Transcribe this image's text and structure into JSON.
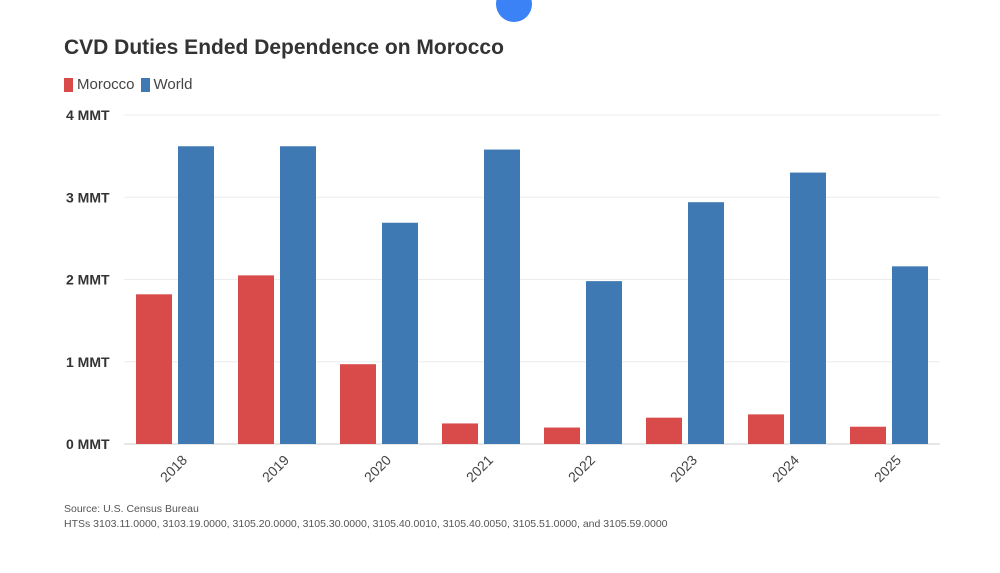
{
  "chart_data": {
    "type": "bar",
    "title": "CVD Duties Ended Dependence on Morocco",
    "categories": [
      "2018",
      "2019",
      "2020",
      "2021",
      "2022",
      "2023",
      "2024",
      "2025"
    ],
    "series": [
      {
        "name": "Morocco",
        "color": "#d94a4a",
        "values": [
          1.82,
          2.05,
          0.97,
          0.25,
          0.2,
          0.32,
          0.36,
          0.21
        ]
      },
      {
        "name": "World",
        "color": "#3f79b3",
        "values": [
          3.62,
          3.62,
          2.69,
          3.58,
          1.98,
          2.94,
          3.3,
          2.16
        ]
      }
    ],
    "ylim": [
      0,
      4
    ],
    "yticks": [
      {
        "value": 0,
        "label": "0 MMT"
      },
      {
        "value": 1,
        "label": "1 MMT"
      },
      {
        "value": 2,
        "label": "2 MMT"
      },
      {
        "value": 3,
        "label": "3 MMT"
      },
      {
        "value": 4,
        "label": "4 MMT"
      }
    ],
    "grid": true,
    "legend_position": "top-left"
  },
  "source": {
    "line1": "Source: U.S. Census Bureau",
    "line2": "HTSs 3103.11.0000, 3103.19.0000, 3105.20.0000, 3105.30.0000, 3105.40.0010, 3105.40.0050, 3105.51.0000, and 3105.59.0000"
  }
}
